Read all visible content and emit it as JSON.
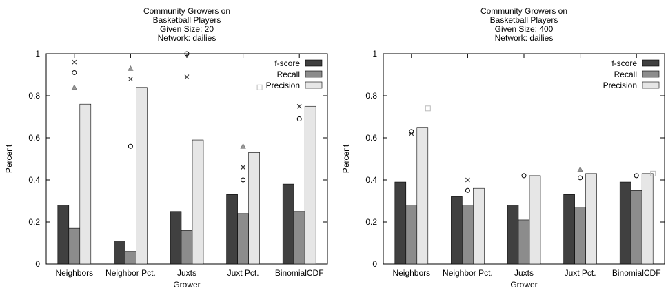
{
  "colors": {
    "f_score": "#404040",
    "recall": "#8c8c8c",
    "precision": "#e6e6e6",
    "bar_stroke": "#000000"
  },
  "chart_data": [
    {
      "type": "bar",
      "title_lines": [
        "Community Growers on",
        "Basketball Players",
        "Given Size: 20",
        "Network: dailies"
      ],
      "xlabel": "Grower",
      "ylabel": "Percent",
      "ylim": [
        0,
        1
      ],
      "yticks": [
        "0",
        "0.2",
        "0.4",
        "0.6",
        "0.8",
        "1"
      ],
      "categories": [
        "Neighbors",
        "Neighbor Pct.",
        "Juxts",
        "Juxt Pct.",
        "BinomialCDF"
      ],
      "legend_position": "top-right",
      "grid": false,
      "series": [
        {
          "name": "f-score",
          "color_key": "f_score",
          "values": [
            0.28,
            0.11,
            0.25,
            0.33,
            0.38
          ]
        },
        {
          "name": "Recall",
          "color_key": "recall",
          "values": [
            0.17,
            0.06,
            0.16,
            0.24,
            0.25
          ]
        },
        {
          "name": "Precision",
          "color_key": "precision",
          "values": [
            0.76,
            0.84,
            0.59,
            0.53,
            0.75
          ]
        }
      ],
      "scatter_markers": [
        {
          "category": 0,
          "offset": 0,
          "marker": "circle",
          "value": 0.91
        },
        {
          "category": 0,
          "offset": 0,
          "marker": "cross",
          "value": 0.96
        },
        {
          "category": 0,
          "offset": 0,
          "marker": "triangle",
          "value": 0.84
        },
        {
          "category": 1,
          "offset": 0,
          "marker": "circle",
          "value": 0.56
        },
        {
          "category": 1,
          "offset": 0,
          "marker": "cross",
          "value": 0.88
        },
        {
          "category": 1,
          "offset": 0,
          "marker": "triangle",
          "value": 0.93
        },
        {
          "category": 2,
          "offset": 0,
          "marker": "circle",
          "value": 1.0
        },
        {
          "category": 2,
          "offset": 0,
          "marker": "cross",
          "value": 0.89
        },
        {
          "category": 3,
          "offset": 0,
          "marker": "circle",
          "value": 0.4
        },
        {
          "category": 3,
          "offset": 0,
          "marker": "cross",
          "value": 0.46
        },
        {
          "category": 3,
          "offset": 0,
          "marker": "triangle",
          "value": 0.56
        },
        {
          "category": 3,
          "offset": 1,
          "marker": "square",
          "value": 0.84
        },
        {
          "category": 4,
          "offset": 0,
          "marker": "circle",
          "value": 0.69
        },
        {
          "category": 4,
          "offset": 0,
          "marker": "cross",
          "value": 0.75
        }
      ]
    },
    {
      "type": "bar",
      "title_lines": [
        "Community Growers on",
        "Basketball Players",
        "Given Size: 400",
        "Network: dailies"
      ],
      "xlabel": "Grower",
      "ylabel": "Percent",
      "ylim": [
        0,
        1
      ],
      "yticks": [
        "0",
        "0.2",
        "0.4",
        "0.6",
        "0.8",
        "1"
      ],
      "categories": [
        "Neighbors",
        "Neighbor Pct.",
        "Juxts",
        "Juxt Pct.",
        "BinomialCDF"
      ],
      "legend_position": "top-right",
      "grid": false,
      "series": [
        {
          "name": "f-score",
          "color_key": "f_score",
          "values": [
            0.39,
            0.32,
            0.28,
            0.33,
            0.39
          ]
        },
        {
          "name": "Recall",
          "color_key": "recall",
          "values": [
            0.28,
            0.28,
            0.21,
            0.27,
            0.35
          ]
        },
        {
          "name": "Precision",
          "color_key": "precision",
          "values": [
            0.65,
            0.36,
            0.42,
            0.43,
            0.43
          ]
        }
      ],
      "scatter_markers": [
        {
          "category": 0,
          "offset": 0,
          "marker": "circle",
          "value": 0.63
        },
        {
          "category": 0,
          "offset": 0,
          "marker": "cross",
          "value": 0.62
        },
        {
          "category": 0,
          "offset": 1,
          "marker": "square",
          "value": 0.74
        },
        {
          "category": 1,
          "offset": 0,
          "marker": "circle",
          "value": 0.35
        },
        {
          "category": 1,
          "offset": 0,
          "marker": "cross",
          "value": 0.4
        },
        {
          "category": 2,
          "offset": 0,
          "marker": "circle",
          "value": 0.42
        },
        {
          "category": 3,
          "offset": 0,
          "marker": "circle",
          "value": 0.41
        },
        {
          "category": 3,
          "offset": 0,
          "marker": "triangle",
          "value": 0.45
        },
        {
          "category": 4,
          "offset": 0,
          "marker": "circle",
          "value": 0.42
        },
        {
          "category": 4,
          "offset": 1,
          "marker": "square",
          "value": 0.43
        }
      ]
    }
  ]
}
